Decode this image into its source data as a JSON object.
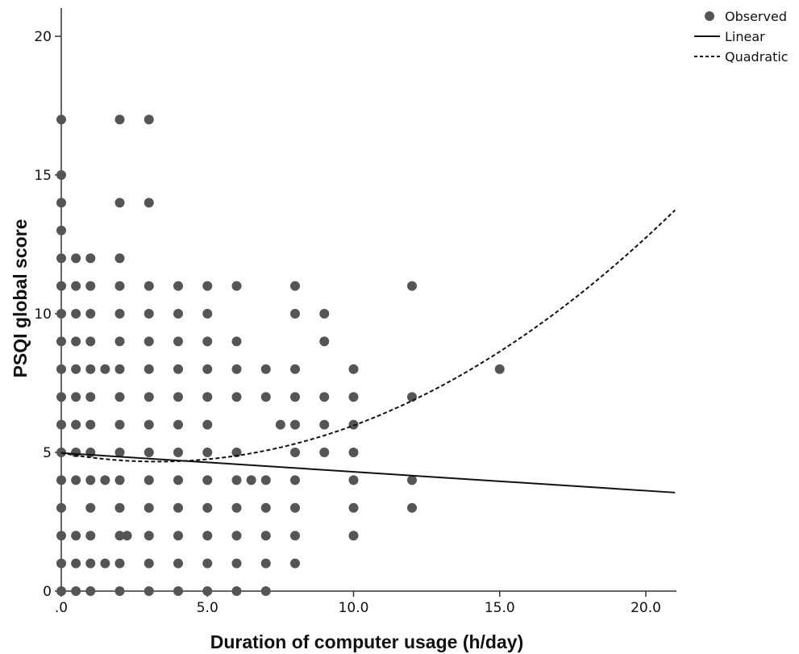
{
  "chart_data": {
    "type": "scatter",
    "title": "",
    "xlabel": "Duration of computer usage (h/day)",
    "ylabel": "PSQI global score",
    "xlim": [
      0,
      21
    ],
    "ylim": [
      0,
      21
    ],
    "x_ticks": [
      {
        "value": 0,
        "label": ".0"
      },
      {
        "value": 5,
        "label": "5.0"
      },
      {
        "value": 10,
        "label": "10.0"
      },
      {
        "value": 15,
        "label": "15.0"
      },
      {
        "value": 20,
        "label": "20.0"
      }
    ],
    "y_ticks": [
      {
        "value": 0,
        "label": "0"
      },
      {
        "value": 5,
        "label": "5"
      },
      {
        "value": 10,
        "label": "10"
      },
      {
        "value": 15,
        "label": "15"
      },
      {
        "value": 20,
        "label": "20"
      }
    ],
    "grid": false,
    "legend": {
      "position": "top-right",
      "entries": [
        {
          "label": "Observed",
          "marker": "circle"
        },
        {
          "label": "Linear",
          "marker": "solid-line"
        },
        {
          "label": "Quadratic",
          "marker": "dashed-line"
        }
      ]
    },
    "point_color": "#555555",
    "observed_columns": [
      {
        "x": 0,
        "y": [
          0,
          1,
          2,
          3,
          4,
          5,
          6,
          7,
          8,
          9,
          10,
          11,
          12,
          13,
          14,
          15,
          17
        ]
      },
      {
        "x": 0.5,
        "y": [
          0,
          1,
          2,
          4,
          5,
          6,
          7,
          8,
          9,
          10,
          11,
          12
        ]
      },
      {
        "x": 1,
        "y": [
          0,
          1,
          2,
          3,
          4,
          5,
          6,
          7,
          8,
          9,
          10,
          11,
          12
        ]
      },
      {
        "x": 1.5,
        "y": [
          1,
          4,
          8
        ]
      },
      {
        "x": 2,
        "y": [
          0,
          1,
          2,
          3,
          4,
          5,
          6,
          7,
          8,
          9,
          10,
          11,
          12,
          14,
          17
        ]
      },
      {
        "x": 2.25,
        "y": [
          2
        ]
      },
      {
        "x": 3,
        "y": [
          0,
          1,
          2,
          3,
          4,
          5,
          6,
          7,
          8,
          9,
          10,
          11,
          14,
          17
        ]
      },
      {
        "x": 4,
        "y": [
          0,
          1,
          2,
          3,
          4,
          5,
          6,
          7,
          8,
          9,
          10,
          11
        ]
      },
      {
        "x": 5,
        "y": [
          0,
          1,
          2,
          3,
          4,
          5,
          6,
          7,
          8,
          9,
          10,
          11
        ]
      },
      {
        "x": 6,
        "y": [
          0,
          1,
          2,
          3,
          4,
          5,
          7,
          8,
          9,
          11
        ]
      },
      {
        "x": 6.5,
        "y": [
          4
        ]
      },
      {
        "x": 7,
        "y": [
          0,
          1,
          2,
          3,
          4,
          7,
          8
        ]
      },
      {
        "x": 7.5,
        "y": [
          6
        ]
      },
      {
        "x": 8,
        "y": [
          1,
          2,
          3,
          4,
          5,
          6,
          7,
          8,
          10,
          11
        ]
      },
      {
        "x": 9,
        "y": [
          5,
          6,
          7,
          9,
          10
        ]
      },
      {
        "x": 10,
        "y": [
          2,
          3,
          4,
          5,
          6,
          7,
          8
        ]
      },
      {
        "x": 12,
        "y": [
          3,
          4,
          7,
          11
        ]
      },
      {
        "x": 15,
        "y": [
          8
        ]
      }
    ],
    "linear_fit": {
      "intercept": 4.98,
      "slope": -0.068
    },
    "quadratic_fit": {
      "a": 4.98,
      "b": -0.19,
      "c": 0.0289
    }
  }
}
